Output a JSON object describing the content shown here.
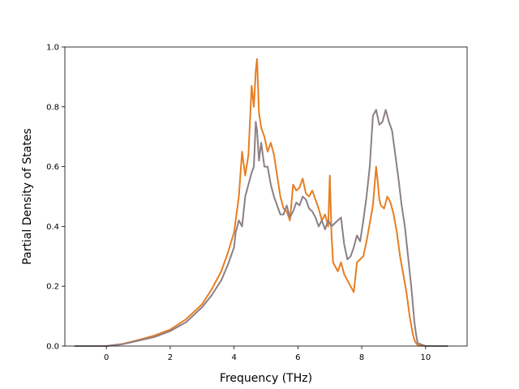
{
  "chart_data": {
    "type": "line",
    "title": "",
    "xlabel": "Frequency (THz)",
    "ylabel": "Partial Density of States",
    "xlim": [
      -1.3,
      11.3
    ],
    "ylim": [
      0.0,
      1.0
    ],
    "xticks": [
      0,
      2,
      4,
      6,
      8,
      10
    ],
    "xtick_labels": [
      "0",
      "2",
      "4",
      "6",
      "8",
      "10"
    ],
    "yticks": [
      0.0,
      0.2,
      0.4,
      0.6,
      0.8,
      1.0
    ],
    "ytick_labels": [
      "0.0",
      "0.2",
      "0.4",
      "0.6",
      "0.8",
      "1.0"
    ],
    "grid": false,
    "series": [
      {
        "color": "#e67e22",
        "x": [
          -1.0,
          0.0,
          0.5,
          1.0,
          1.5,
          2.0,
          2.5,
          3.0,
          3.3,
          3.6,
          3.8,
          4.0,
          4.05,
          4.15,
          4.25,
          4.35,
          4.45,
          4.55,
          4.62,
          4.68,
          4.72,
          4.78,
          4.85,
          4.95,
          5.05,
          5.15,
          5.25,
          5.35,
          5.45,
          5.55,
          5.65,
          5.75,
          5.85,
          5.95,
          6.05,
          6.15,
          6.25,
          6.35,
          6.45,
          6.55,
          6.65,
          6.75,
          6.85,
          6.95,
          7.0,
          7.05,
          7.1,
          7.15,
          7.25,
          7.35,
          7.45,
          7.55,
          7.65,
          7.75,
          7.85,
          7.95,
          8.05,
          8.15,
          8.25,
          8.35,
          8.45,
          8.5,
          8.55,
          8.6,
          8.7,
          8.8,
          8.9,
          9.0,
          9.1,
          9.2,
          9.3,
          9.4,
          9.5,
          9.6,
          9.65,
          9.7,
          9.75,
          10.0,
          10.7
        ],
        "y": [
          0.0,
          0.0,
          0.007,
          0.02,
          0.035,
          0.055,
          0.09,
          0.14,
          0.19,
          0.25,
          0.31,
          0.38,
          0.42,
          0.5,
          0.65,
          0.57,
          0.64,
          0.87,
          0.8,
          0.92,
          0.96,
          0.78,
          0.73,
          0.7,
          0.65,
          0.68,
          0.64,
          0.57,
          0.5,
          0.46,
          0.45,
          0.42,
          0.54,
          0.52,
          0.53,
          0.56,
          0.51,
          0.5,
          0.52,
          0.49,
          0.46,
          0.42,
          0.44,
          0.4,
          0.57,
          0.38,
          0.28,
          0.27,
          0.25,
          0.28,
          0.24,
          0.22,
          0.2,
          0.18,
          0.28,
          0.29,
          0.3,
          0.35,
          0.41,
          0.47,
          0.6,
          0.55,
          0.49,
          0.47,
          0.46,
          0.5,
          0.48,
          0.44,
          0.38,
          0.3,
          0.24,
          0.18,
          0.1,
          0.04,
          0.02,
          0.01,
          0.003,
          0.0,
          0.0
        ]
      },
      {
        "color": "#8c7f86",
        "x": [
          -1.0,
          0.0,
          0.5,
          1.0,
          1.5,
          2.0,
          2.5,
          3.0,
          3.3,
          3.6,
          3.8,
          4.0,
          4.05,
          4.15,
          4.25,
          4.35,
          4.45,
          4.55,
          4.62,
          4.68,
          4.72,
          4.78,
          4.85,
          4.95,
          5.05,
          5.15,
          5.25,
          5.35,
          5.45,
          5.55,
          5.65,
          5.75,
          5.85,
          5.95,
          6.05,
          6.15,
          6.25,
          6.35,
          6.45,
          6.55,
          6.65,
          6.75,
          6.85,
          6.95,
          7.05,
          7.15,
          7.25,
          7.35,
          7.45,
          7.55,
          7.65,
          7.75,
          7.85,
          7.95,
          8.05,
          8.15,
          8.25,
          8.35,
          8.45,
          8.55,
          8.65,
          8.75,
          8.85,
          8.95,
          9.05,
          9.15,
          9.25,
          9.35,
          9.45,
          9.55,
          9.65,
          9.7,
          9.75,
          10.0,
          10.7
        ],
        "y": [
          0.0,
          0.0,
          0.006,
          0.018,
          0.03,
          0.05,
          0.08,
          0.13,
          0.17,
          0.22,
          0.27,
          0.33,
          0.38,
          0.42,
          0.4,
          0.5,
          0.54,
          0.58,
          0.6,
          0.75,
          0.72,
          0.62,
          0.68,
          0.6,
          0.6,
          0.54,
          0.5,
          0.47,
          0.44,
          0.44,
          0.47,
          0.43,
          0.45,
          0.48,
          0.47,
          0.5,
          0.49,
          0.46,
          0.45,
          0.43,
          0.4,
          0.42,
          0.39,
          0.42,
          0.4,
          0.41,
          0.42,
          0.43,
          0.34,
          0.29,
          0.3,
          0.33,
          0.37,
          0.35,
          0.42,
          0.5,
          0.6,
          0.77,
          0.79,
          0.74,
          0.75,
          0.79,
          0.75,
          0.72,
          0.64,
          0.56,
          0.47,
          0.4,
          0.3,
          0.2,
          0.08,
          0.04,
          0.01,
          0.0,
          0.0
        ]
      }
    ]
  }
}
